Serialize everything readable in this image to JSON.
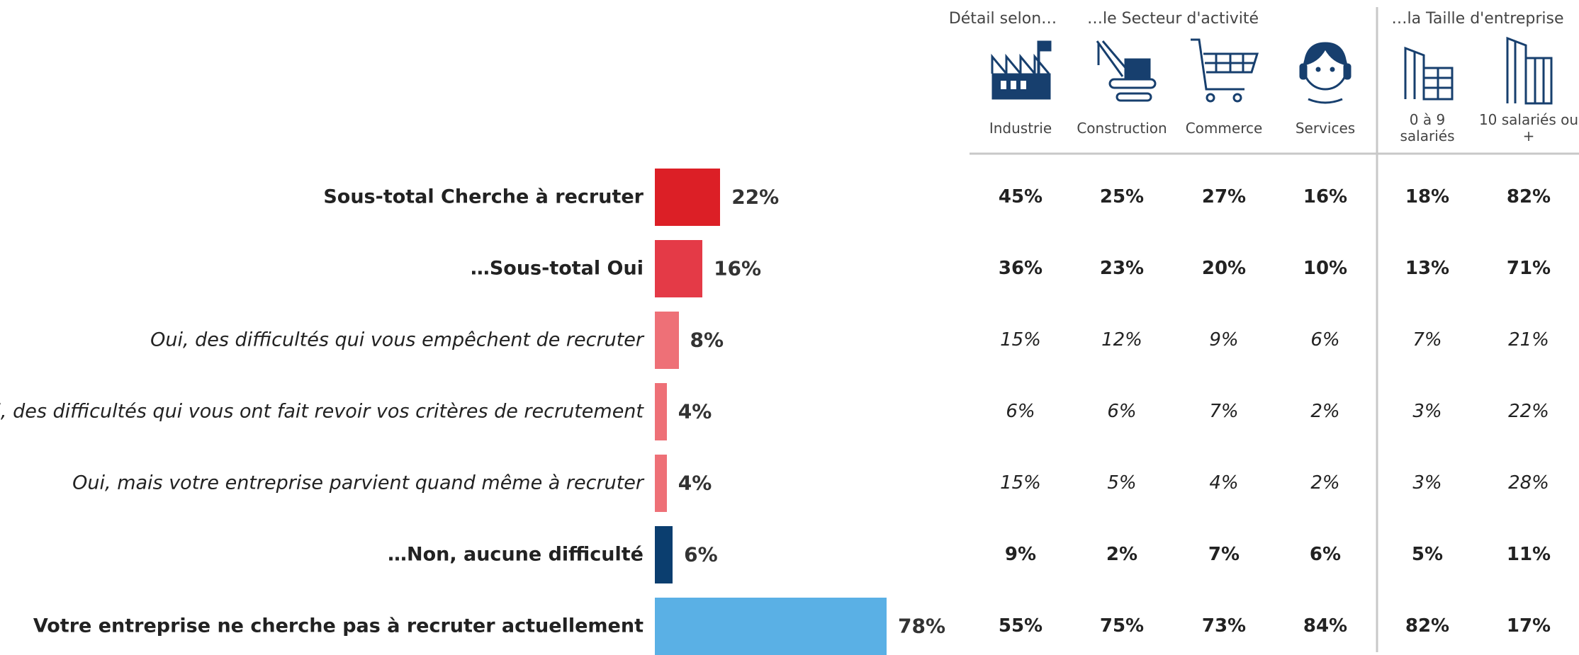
{
  "chart_data": {
    "type": "bar",
    "orientation": "horizontal",
    "categories": [
      "Sous-total Cherche à recruter",
      "…Sous-total Oui",
      "Oui, des difficultés qui vous empêchent de recruter",
      "Oui, des difficultés qui vous ont fait revoir vos critères de recrutement",
      "Oui, mais votre entreprise parvient quand même à recruter",
      "…Non, aucune difficulté",
      "Votre entreprise ne cherche pas à recruter actuellement"
    ],
    "values": [
      22,
      16,
      8,
      4,
      4,
      6,
      78
    ],
    "value_labels": [
      "22%",
      "16%",
      "8%",
      "4%",
      "4%",
      "6%",
      "78%"
    ],
    "colors": [
      "#dc1f26",
      "#e43a47",
      "#ee7077",
      "#ee7077",
      "#ee7077",
      "#0b3e6f",
      "#5ab0e5"
    ],
    "emphasis": [
      "bold",
      "bold",
      "italic",
      "italic",
      "italic",
      "bold",
      "bold"
    ]
  },
  "table": {
    "groups": [
      "Détail selon…",
      "…le Secteur d'activité",
      "…la Taille d'entreprise"
    ],
    "columns": [
      "Industrie",
      "Construction",
      "Commerce",
      "Services",
      "0 à 9 salariés",
      "10 salariés ou +"
    ],
    "rows": [
      [
        "45%",
        "25%",
        "27%",
        "16%",
        "18%",
        "82%"
      ],
      [
        "36%",
        "23%",
        "20%",
        "10%",
        "13%",
        "71%"
      ],
      [
        "15%",
        "12%",
        "9%",
        "6%",
        "7%",
        "21%"
      ],
      [
        "6%",
        "6%",
        "7%",
        "2%",
        "3%",
        "22%"
      ],
      [
        "15%",
        "5%",
        "4%",
        "2%",
        "3%",
        "28%"
      ],
      [
        "9%",
        "2%",
        "7%",
        "6%",
        "5%",
        "11%"
      ],
      [
        "55%",
        "75%",
        "73%",
        "84%",
        "82%",
        "17%"
      ]
    ]
  }
}
